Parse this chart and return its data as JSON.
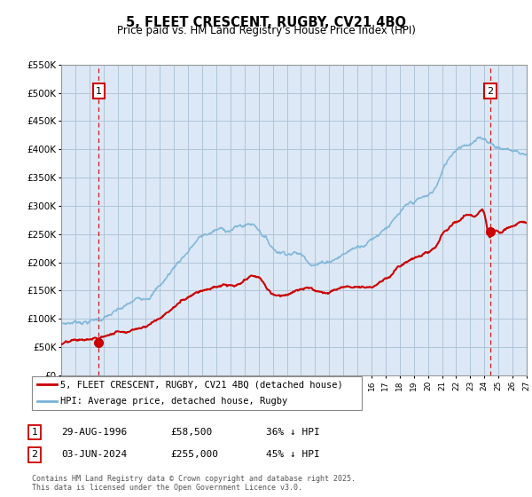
{
  "title": "5, FLEET CRESCENT, RUGBY, CV21 4BQ",
  "subtitle": "Price paid vs. HM Land Registry's House Price Index (HPI)",
  "legend_line1": "5, FLEET CRESCENT, RUGBY, CV21 4BQ (detached house)",
  "legend_line2": "HPI: Average price, detached house, Rugby",
  "annotation1_date": "29-AUG-1996",
  "annotation1_price": "£58,500",
  "annotation1_hpi": "36% ↓ HPI",
  "annotation2_date": "03-JUN-2024",
  "annotation2_price": "£255,000",
  "annotation2_hpi": "45% ↓ HPI",
  "footer": "Contains HM Land Registry data © Crown copyright and database right 2025.\nThis data is licensed under the Open Government Licence v3.0.",
  "hpi_color": "#7ab3d8",
  "price_color": "#cc0000",
  "bg_color": "#dce8f5",
  "grid_color": "#b0c4d8",
  "ylim_min": 0,
  "ylim_max": 550000,
  "x_start_year": 1994,
  "x_end_year": 2027,
  "sale1_year": 1996.66,
  "sale1_price": 58500,
  "sale2_year": 2024.42,
  "sale2_price": 255000,
  "hpi_points_x": [
    1994.0,
    1994.5,
    1995.0,
    1995.5,
    1996.0,
    1996.5,
    1997.0,
    1997.5,
    1998.0,
    1998.5,
    1999.0,
    1999.5,
    2000.0,
    2000.5,
    2001.0,
    2001.5,
    2002.0,
    2002.5,
    2003.0,
    2003.5,
    2004.0,
    2004.5,
    2005.0,
    2005.5,
    2006.0,
    2006.5,
    2007.0,
    2007.5,
    2008.0,
    2008.5,
    2009.0,
    2009.5,
    2010.0,
    2010.5,
    2011.0,
    2011.5,
    2012.0,
    2012.5,
    2013.0,
    2013.5,
    2014.0,
    2014.5,
    2015.0,
    2015.5,
    2016.0,
    2016.5,
    2017.0,
    2017.5,
    2018.0,
    2018.5,
    2019.0,
    2019.5,
    2020.0,
    2020.5,
    2021.0,
    2021.5,
    2022.0,
    2022.5,
    2023.0,
    2023.5,
    2024.0,
    2024.5,
    2025.0,
    2025.5,
    2026.0,
    2026.5,
    2027.0
  ],
  "hpi_points_y": [
    90000,
    92000,
    95000,
    98000,
    100000,
    103000,
    107000,
    112000,
    116000,
    120000,
    126000,
    132000,
    140000,
    152000,
    165000,
    180000,
    198000,
    215000,
    230000,
    245000,
    255000,
    260000,
    265000,
    265000,
    268000,
    272000,
    275000,
    278000,
    272000,
    258000,
    242000,
    238000,
    240000,
    242000,
    238000,
    232000,
    230000,
    232000,
    238000,
    245000,
    252000,
    260000,
    268000,
    278000,
    288000,
    300000,
    315000,
    325000,
    335000,
    342000,
    348000,
    352000,
    355000,
    368000,
    395000,
    420000,
    440000,
    452000,
    458000,
    462000,
    465000,
    460000,
    455000,
    452000,
    450000,
    448000,
    445000
  ],
  "pp_points_x": [
    1994.0,
    1994.5,
    1995.0,
    1995.5,
    1996.0,
    1996.5,
    1997.0,
    1997.5,
    1998.0,
    1998.5,
    1999.0,
    1999.5,
    2000.0,
    2000.5,
    2001.0,
    2001.5,
    2002.0,
    2002.5,
    2003.0,
    2003.5,
    2004.0,
    2004.5,
    2005.0,
    2005.5,
    2006.0,
    2006.5,
    2007.0,
    2007.5,
    2008.0,
    2008.5,
    2009.0,
    2009.5,
    2010.0,
    2010.5,
    2011.0,
    2011.5,
    2012.0,
    2012.5,
    2013.0,
    2013.5,
    2014.0,
    2014.5,
    2015.0,
    2015.5,
    2016.0,
    2016.5,
    2017.0,
    2017.5,
    2018.0,
    2018.5,
    2019.0,
    2019.5,
    2020.0,
    2020.5,
    2021.0,
    2021.5,
    2022.0,
    2022.5,
    2023.0,
    2023.5,
    2024.0,
    2024.42,
    2024.5,
    2025.0,
    2025.5,
    2026.0,
    2026.5,
    2027.0
  ],
  "pp_points_y": [
    55000,
    56000,
    57000,
    57500,
    58000,
    58500,
    62000,
    67000,
    72000,
    76000,
    80000,
    86000,
    92000,
    100000,
    108000,
    118000,
    128000,
    138000,
    148000,
    158000,
    165000,
    170000,
    172000,
    175000,
    172000,
    170000,
    175000,
    180000,
    178000,
    162000,
    148000,
    148000,
    152000,
    155000,
    158000,
    158000,
    155000,
    155000,
    158000,
    162000,
    165000,
    168000,
    172000,
    175000,
    178000,
    185000,
    195000,
    205000,
    215000,
    222000,
    228000,
    232000,
    235000,
    245000,
    262000,
    275000,
    285000,
    292000,
    295000,
    298000,
    300000,
    255000,
    258000,
    262000,
    265000,
    268000,
    270000,
    272000
  ]
}
